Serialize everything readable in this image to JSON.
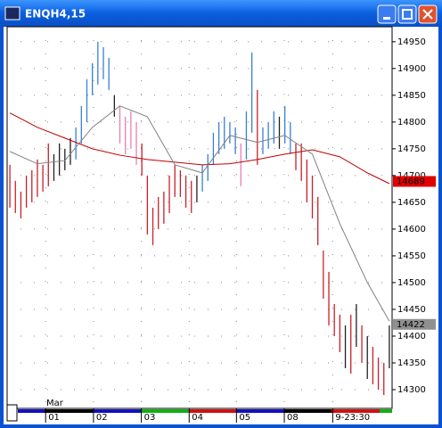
{
  "chart_data": {
    "type": "ohlc",
    "title": "ENQH4,15",
    "highs": [
      14720,
      14690,
      14670,
      14700,
      14710,
      14730,
      14720,
      14760,
      14740,
      14760,
      14750,
      14770,
      14790,
      14830,
      14880,
      14910,
      14950,
      14940,
      14920,
      14850,
      14830,
      14810,
      14820,
      14800,
      14760,
      14700,
      14640,
      14660,
      14670,
      14700,
      14720,
      14710,
      14700,
      14690,
      14700,
      14720,
      14740,
      14780,
      14800,
      14810,
      14800,
      14790,
      14760,
      14820,
      14930,
      14860,
      14790,
      14800,
      14820,
      14810,
      14830,
      14800,
      14760,
      14760,
      14730,
      14700,
      14660,
      14560,
      14520,
      14460,
      14440,
      14420,
      14440,
      14460,
      14420,
      14400,
      14380,
      14360,
      14350,
      14420
    ],
    "lows": [
      14640,
      14630,
      14620,
      14640,
      14650,
      14660,
      14670,
      14680,
      14690,
      14700,
      14710,
      14720,
      14730,
      14760,
      14800,
      14850,
      14870,
      14880,
      14860,
      14810,
      14760,
      14740,
      14750,
      14720,
      14700,
      14590,
      14570,
      14600,
      14610,
      14630,
      14660,
      14660,
      14640,
      14630,
      14650,
      14670,
      14690,
      14720,
      14740,
      14750,
      14760,
      14740,
      14680,
      14730,
      14780,
      14720,
      14740,
      14750,
      14760,
      14750,
      14760,
      14740,
      14710,
      14690,
      14650,
      14620,
      14570,
      14470,
      14420,
      14400,
      14370,
      14340,
      14330,
      14380,
      14350,
      14320,
      14310,
      14300,
      14290,
      14340
    ],
    "colors": [
      "#c8202a",
      "#c8202a",
      "#c8202a",
      "#c8202a",
      "#c8202a",
      "#c8202a",
      "#c8202a",
      "#c8202a",
      "#222222",
      "#222222",
      "#222222",
      "#222222",
      "#3a7fd5",
      "#3a7fd5",
      "#3a7fd5",
      "#3a7fd5",
      "#3a7fd5",
      "#3a7fd5",
      "#3a7fd5",
      "#222222",
      "#e87fb4",
      "#e87fb4",
      "#e87fb4",
      "#e87fb4",
      "#c8202a",
      "#c8202a",
      "#c8202a",
      "#c8202a",
      "#c8202a",
      "#c8202a",
      "#c8202a",
      "#c8202a",
      "#c8202a",
      "#c8202a",
      "#222222",
      "#3a7fd5",
      "#3a7fd5",
      "#3a7fd5",
      "#3a7fd5",
      "#3a7fd5",
      "#3a7fd5",
      "#3a7fd5",
      "#e87fb4",
      "#3a7fd5",
      "#3a7fd5",
      "#c8202a",
      "#3a7fd5",
      "#3a7fd5",
      "#3a7fd5",
      "#222222",
      "#3a7fd5",
      "#3a7fd5",
      "#c8202a",
      "#c8202a",
      "#c8202a",
      "#c8202a",
      "#c8202a",
      "#c8202a",
      "#c8202a",
      "#c8202a",
      "#c8202a",
      "#222222",
      "#c8202a",
      "#222222",
      "#c8202a",
      "#222222",
      "#c8202a",
      "#c8202a",
      "#c8202a",
      "#222222"
    ],
    "lines": [
      {
        "color": "#c00000",
        "x": [
          0,
          5,
          10,
          15,
          20,
          25,
          30,
          35,
          40,
          45,
          50,
          55,
          60,
          65,
          69
        ],
        "values": [
          14817,
          14790,
          14770,
          14750,
          14738,
          14730,
          14725,
          14720,
          14722,
          14730,
          14740,
          14748,
          14735,
          14705,
          14685
        ]
      },
      {
        "color": "#808080",
        "x": [
          0,
          5,
          10,
          15,
          20,
          25,
          30,
          35,
          40,
          45,
          50,
          55,
          60,
          65,
          69
        ],
        "values": [
          14745,
          14722,
          14728,
          14790,
          14830,
          14810,
          14720,
          14705,
          14775,
          14762,
          14775,
          14740,
          14610,
          14500,
          14428
        ]
      }
    ],
    "price_tags": [
      {
        "value": 14689,
        "color": "#e00000"
      },
      {
        "value": 14422,
        "color": "#909090"
      }
    ],
    "ylim": [
      14265,
      14978
    ],
    "yticks": [
      14300,
      14350,
      14400,
      14450,
      14500,
      14550,
      14600,
      14650,
      14700,
      14750,
      14800,
      14850,
      14900,
      14950
    ],
    "xlim": [
      0,
      70
    ],
    "xticks": [
      {
        "value": 6.5,
        "label": "01"
      },
      {
        "value": 15.2,
        "label": "02"
      },
      {
        "value": 23.9,
        "label": "03"
      },
      {
        "value": 32.6,
        "label": "04"
      },
      {
        "value": 41.2,
        "label": "05"
      },
      {
        "value": 49.9,
        "label": "08"
      },
      {
        "value": 58.7,
        "label": "9-23:30"
      }
    ],
    "month_label": "Mar",
    "grid": true
  }
}
